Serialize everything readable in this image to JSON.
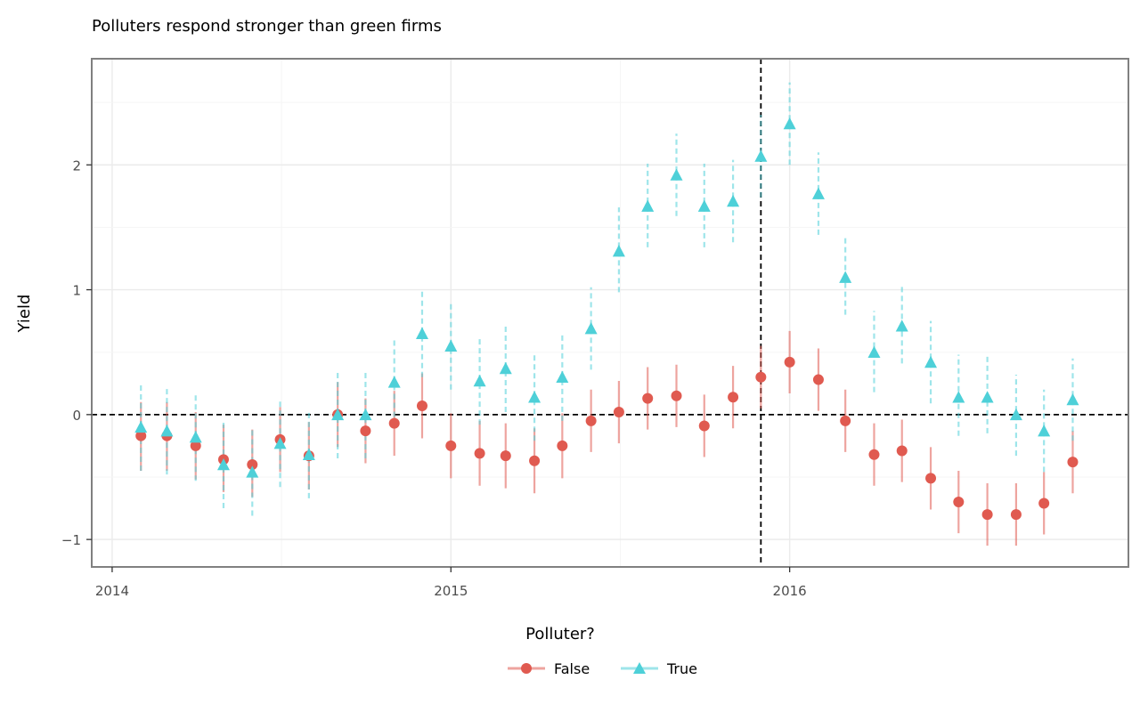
{
  "chart_data": {
    "type": "scatter",
    "title": "Polluters respond stronger than green firms",
    "xlabel": "",
    "ylabel": "Yield",
    "x_axis_type": "date",
    "xlim": [
      "2013-12-10",
      "2016-12-31"
    ],
    "ylim": [
      -1.22,
      2.85
    ],
    "x_ticks": [
      {
        "value": "2014-01-01",
        "label": "2014"
      },
      {
        "value": "2015-01-01",
        "label": "2015"
      },
      {
        "value": "2016-01-01",
        "label": "2016"
      }
    ],
    "y_ticks": [
      {
        "value": -1,
        "label": "−1"
      },
      {
        "value": 0,
        "label": "0"
      },
      {
        "value": 1,
        "label": "1"
      },
      {
        "value": 2,
        "label": "2"
      }
    ],
    "grid": true,
    "reference_lines": {
      "horizontal_y": 0,
      "vertical_x": "2015-12-01"
    },
    "legend": {
      "title": "Polluter?",
      "position": "bottom"
    },
    "series": [
      {
        "name": "False",
        "color": "#e05a50",
        "marker": "circle",
        "linestyle": "solid",
        "points": [
          {
            "x": "2014-02-01",
            "y": -0.17,
            "lo": -0.45,
            "hi": 0.1
          },
          {
            "x": "2014-03-01",
            "y": -0.17,
            "lo": -0.45,
            "hi": 0.1
          },
          {
            "x": "2014-04-01",
            "y": -0.25,
            "lo": -0.52,
            "hi": 0.02
          },
          {
            "x": "2014-05-01",
            "y": -0.36,
            "lo": -0.62,
            "hi": -0.08
          },
          {
            "x": "2014-06-01",
            "y": -0.4,
            "lo": -0.66,
            "hi": -0.12
          },
          {
            "x": "2014-07-01",
            "y": -0.2,
            "lo": -0.46,
            "hi": 0.06
          },
          {
            "x": "2014-08-01",
            "y": -0.33,
            "lo": -0.6,
            "hi": -0.06
          },
          {
            "x": "2014-09-01",
            "y": 0.0,
            "lo": -0.26,
            "hi": 0.26
          },
          {
            "x": "2014-10-01",
            "y": -0.13,
            "lo": -0.39,
            "hi": 0.13
          },
          {
            "x": "2014-11-01",
            "y": -0.07,
            "lo": -0.33,
            "hi": 0.19
          },
          {
            "x": "2014-12-01",
            "y": 0.07,
            "lo": -0.19,
            "hi": 0.33
          },
          {
            "x": "2015-01-01",
            "y": -0.25,
            "lo": -0.51,
            "hi": 0.01
          },
          {
            "x": "2015-02-01",
            "y": -0.31,
            "lo": -0.57,
            "hi": -0.05
          },
          {
            "x": "2015-03-01",
            "y": -0.33,
            "lo": -0.59,
            "hi": -0.07
          },
          {
            "x": "2015-04-01",
            "y": -0.37,
            "lo": -0.63,
            "hi": -0.11
          },
          {
            "x": "2015-05-01",
            "y": -0.25,
            "lo": -0.51,
            "hi": 0.01
          },
          {
            "x": "2015-06-01",
            "y": -0.05,
            "lo": -0.3,
            "hi": 0.2
          },
          {
            "x": "2015-07-01",
            "y": 0.02,
            "lo": -0.23,
            "hi": 0.27
          },
          {
            "x": "2015-08-01",
            "y": 0.13,
            "lo": -0.12,
            "hi": 0.38
          },
          {
            "x": "2015-09-01",
            "y": 0.15,
            "lo": -0.1,
            "hi": 0.4
          },
          {
            "x": "2015-10-01",
            "y": -0.09,
            "lo": -0.34,
            "hi": 0.16
          },
          {
            "x": "2015-11-01",
            "y": 0.14,
            "lo": -0.11,
            "hi": 0.39
          },
          {
            "x": "2015-12-01",
            "y": 0.3,
            "lo": 0.05,
            "hi": 0.55
          },
          {
            "x": "2016-01-01",
            "y": 0.42,
            "lo": 0.17,
            "hi": 0.67
          },
          {
            "x": "2016-02-01",
            "y": 0.28,
            "lo": 0.03,
            "hi": 0.53
          },
          {
            "x": "2016-03-01",
            "y": -0.05,
            "lo": -0.3,
            "hi": 0.2
          },
          {
            "x": "2016-04-01",
            "y": -0.32,
            "lo": -0.57,
            "hi": -0.07
          },
          {
            "x": "2016-05-01",
            "y": -0.29,
            "lo": -0.54,
            "hi": -0.04
          },
          {
            "x": "2016-06-01",
            "y": -0.51,
            "lo": -0.76,
            "hi": -0.26
          },
          {
            "x": "2016-07-01",
            "y": -0.7,
            "lo": -0.95,
            "hi": -0.45
          },
          {
            "x": "2016-08-01",
            "y": -0.8,
            "lo": -1.05,
            "hi": -0.55
          },
          {
            "x": "2016-09-01",
            "y": -0.8,
            "lo": -1.05,
            "hi": -0.55
          },
          {
            "x": "2016-10-01",
            "y": -0.71,
            "lo": -0.96,
            "hi": -0.46
          },
          {
            "x": "2016-11-01",
            "y": -0.38,
            "lo": -0.63,
            "hi": -0.13
          }
        ]
      },
      {
        "name": "True",
        "color": "#4ed0d8",
        "marker": "triangle",
        "linestyle": "dashed",
        "points": [
          {
            "x": "2014-02-01",
            "y": -0.1,
            "lo": -0.45,
            "hi": 0.25
          },
          {
            "x": "2014-03-01",
            "y": -0.13,
            "lo": -0.48,
            "hi": 0.22
          },
          {
            "x": "2014-04-01",
            "y": -0.18,
            "lo": -0.53,
            "hi": 0.17
          },
          {
            "x": "2014-05-01",
            "y": -0.4,
            "lo": -0.75,
            "hi": -0.05
          },
          {
            "x": "2014-06-01",
            "y": -0.46,
            "lo": -0.81,
            "hi": -0.11
          },
          {
            "x": "2014-07-01",
            "y": -0.23,
            "lo": -0.58,
            "hi": 0.12
          },
          {
            "x": "2014-08-01",
            "y": -0.32,
            "lo": -0.67,
            "hi": 0.03
          },
          {
            "x": "2014-09-01",
            "y": 0.0,
            "lo": -0.35,
            "hi": 0.35
          },
          {
            "x": "2014-10-01",
            "y": 0.0,
            "lo": -0.35,
            "hi": 0.35
          },
          {
            "x": "2014-11-01",
            "y": 0.26,
            "lo": -0.09,
            "hi": 0.61
          },
          {
            "x": "2014-12-01",
            "y": 0.65,
            "lo": 0.3,
            "hi": 1.0
          },
          {
            "x": "2015-01-01",
            "y": 0.55,
            "lo": 0.2,
            "hi": 0.9
          },
          {
            "x": "2015-02-01",
            "y": 0.27,
            "lo": -0.08,
            "hi": 0.62
          },
          {
            "x": "2015-03-01",
            "y": 0.37,
            "lo": 0.02,
            "hi": 0.72
          },
          {
            "x": "2015-04-01",
            "y": 0.14,
            "lo": -0.21,
            "hi": 0.49
          },
          {
            "x": "2015-05-01",
            "y": 0.3,
            "lo": -0.05,
            "hi": 0.65
          },
          {
            "x": "2015-06-01",
            "y": 0.69,
            "lo": 0.36,
            "hi": 1.02
          },
          {
            "x": "2015-07-01",
            "y": 1.31,
            "lo": 0.98,
            "hi": 1.66
          },
          {
            "x": "2015-08-01",
            "y": 1.67,
            "lo": 1.34,
            "hi": 2.01
          },
          {
            "x": "2015-09-01",
            "y": 1.92,
            "lo": 1.59,
            "hi": 2.25
          },
          {
            "x": "2015-10-01",
            "y": 1.67,
            "lo": 1.34,
            "hi": 2.01
          },
          {
            "x": "2015-11-01",
            "y": 1.71,
            "lo": 1.38,
            "hi": 2.04
          },
          {
            "x": "2015-12-01",
            "y": 2.07,
            "lo": 1.74,
            "hi": 2.4
          },
          {
            "x": "2016-01-01",
            "y": 2.33,
            "lo": 2.0,
            "hi": 2.66
          },
          {
            "x": "2016-02-01",
            "y": 1.77,
            "lo": 1.44,
            "hi": 2.1
          },
          {
            "x": "2016-03-01",
            "y": 1.1,
            "lo": 0.8,
            "hi": 1.42
          },
          {
            "x": "2016-04-01",
            "y": 0.5,
            "lo": 0.18,
            "hi": 0.83
          },
          {
            "x": "2016-05-01",
            "y": 0.71,
            "lo": 0.41,
            "hi": 1.03
          },
          {
            "x": "2016-06-01",
            "y": 0.42,
            "lo": 0.09,
            "hi": 0.75
          },
          {
            "x": "2016-07-01",
            "y": 0.14,
            "lo": -0.17,
            "hi": 0.48
          },
          {
            "x": "2016-08-01",
            "y": 0.14,
            "lo": -0.15,
            "hi": 0.47
          },
          {
            "x": "2016-09-01",
            "y": 0.0,
            "lo": -0.33,
            "hi": 0.32
          },
          {
            "x": "2016-10-01",
            "y": -0.13,
            "lo": -0.46,
            "hi": 0.2
          },
          {
            "x": "2016-11-01",
            "y": 0.12,
            "lo": -0.21,
            "hi": 0.45
          }
        ]
      }
    ]
  }
}
